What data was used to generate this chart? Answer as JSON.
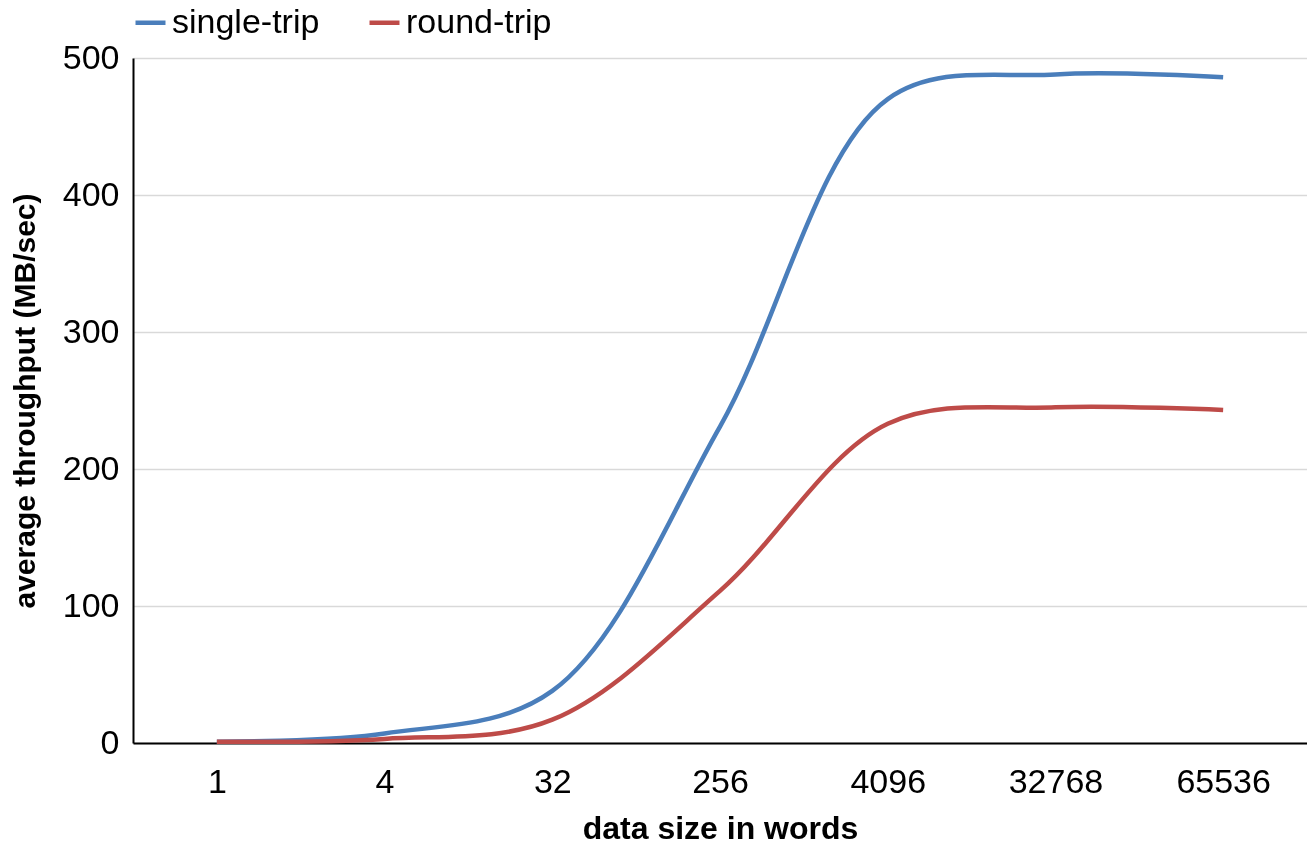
{
  "chart_data": {
    "type": "line",
    "xlabel": "data size in words",
    "ylabel": "average throughput (MB/sec)",
    "categories": [
      "1",
      "4",
      "32",
      "256",
      "4096",
      "32768",
      "65536"
    ],
    "series": [
      {
        "name": "single-trip",
        "color": "#4a7ebb",
        "values": [
          1,
          7,
          38,
          231,
          470,
          488,
          486
        ]
      },
      {
        "name": "round-trip",
        "color": "#be4b48",
        "values": [
          1,
          3,
          17,
          111,
          233,
          245,
          243
        ]
      }
    ],
    "ylim": [
      0,
      500
    ],
    "yticks": [
      0,
      100,
      200,
      300,
      400,
      500
    ],
    "grid": "y",
    "legend": "top",
    "marker": "none",
    "line_style": "solid"
  }
}
